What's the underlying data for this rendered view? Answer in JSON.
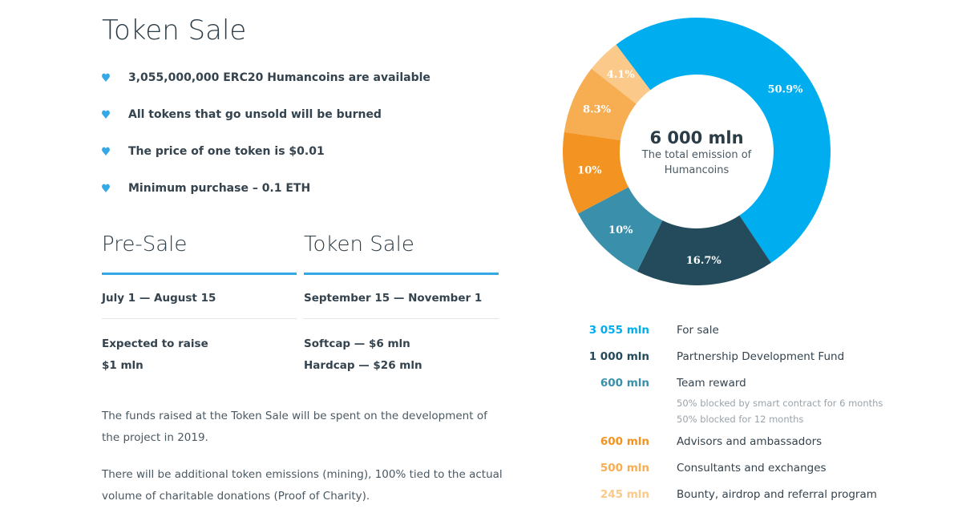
{
  "page": {
    "title": "Token Sale",
    "bullets": [
      "3,055,000,000 ERC20 Humancoins are available",
      "All tokens that go unsold will be burned",
      "The price of one token is $0.01",
      "Minimum purchase – 0.1 ETH"
    ],
    "presale": {
      "title": "Pre-Sale",
      "dates": "July 1 — August 15",
      "line1": "Expected to raise",
      "line2": "$1 mln"
    },
    "tokensale": {
      "title": "Token Sale",
      "dates": "September 15 — November 1",
      "line1": "Softcap — $6 mln",
      "line2": "Hardcap — $26 mln"
    },
    "note1": "The funds raised at the Token Sale will be spent on the development of the project in 2019.",
    "note2": "There will be additional token emissions (mining), 100% tied to the actual volume of charitable donations (Proof of Charity).",
    "accent_color": "#35a9e6"
  },
  "chart_data": {
    "type": "pie",
    "donut": true,
    "center_value": "6 000 mln",
    "center_caption": "The total emission of Humancoins",
    "slices": [
      {
        "label": "For sale",
        "value": 50.9,
        "data_label": "50.9%",
        "amount": "3 055 mln",
        "color": "#00adef",
        "amount_color": "#00adef"
      },
      {
        "label": "Partnership Development Fund",
        "value": 16.7,
        "data_label": "16.7%",
        "amount": "1 000 mln",
        "color": "#234b5b",
        "amount_color": "#234b5b"
      },
      {
        "label": "Team reward",
        "value": 10,
        "data_label": "10%",
        "amount": "600 mln",
        "color": "#3a8fab",
        "amount_color": "#3a8fab",
        "notes": [
          "50% blocked by smart contract for 6 months",
          "50% blocked for 12 months"
        ]
      },
      {
        "label": "Advisors and ambassadors",
        "value": 10,
        "data_label": "10%",
        "amount": "600 mln",
        "color": "#f29322",
        "amount_color": "#f29322"
      },
      {
        "label": "Consultants and exchanges",
        "value": 8.3,
        "data_label": "8.3%",
        "amount": "500 mln",
        "color": "#f7ad52",
        "amount_color": "#f7ad52"
      },
      {
        "label": "Bounty, airdrop and referral program",
        "value": 4.1,
        "data_label": "4.1%",
        "amount": "245 mln",
        "color": "#fbc989",
        "amount_color": "#fbc989"
      }
    ]
  }
}
